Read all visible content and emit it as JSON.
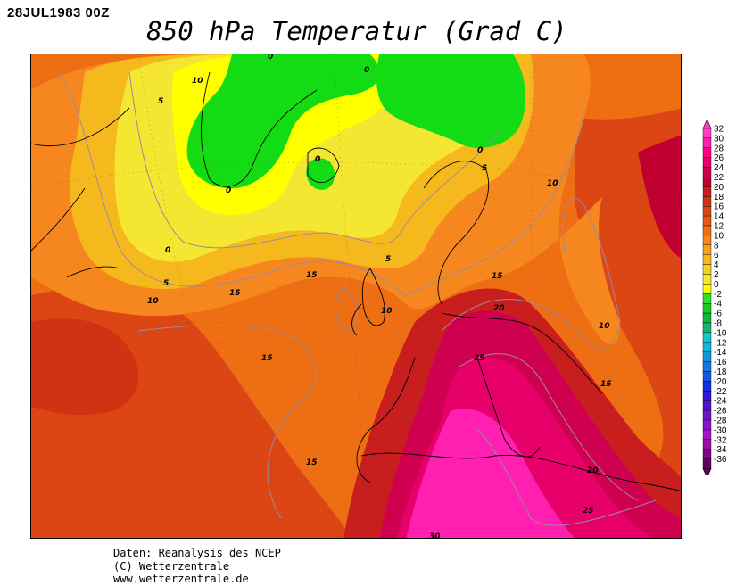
{
  "header": {
    "date": "28JUL1983 00Z",
    "title": "850 hPa Temperatur (Grad C)"
  },
  "legend": {
    "levels": [
      "32",
      "30",
      "28",
      "26",
      "24",
      "22",
      "20",
      "18",
      "16",
      "14",
      "12",
      "10",
      "8",
      "6",
      "4",
      "2",
      "0",
      "-2",
      "-4",
      "-6",
      "-8",
      "-10",
      "-12",
      "-14",
      "-16",
      "-18",
      "-20",
      "-22",
      "-24",
      "-26",
      "-28",
      "-30",
      "-32",
      "-34",
      "-36"
    ],
    "colors": [
      "#ff3fbf",
      "#ff1fb0",
      "#ff0080",
      "#e8006a",
      "#d00050",
      "#c00030",
      "#c81e1e",
      "#d23214",
      "#dc4614",
      "#e65a14",
      "#ee6e14",
      "#f5871e",
      "#f5a01e",
      "#f5b91e",
      "#f5d21e",
      "#f5e632",
      "#ffff00",
      "#32dc32",
      "#1ec81e",
      "#14b43c",
      "#14b478",
      "#14c8c8",
      "#14b4dc",
      "#1496dc",
      "#1478dc",
      "#145adc",
      "#1432dc",
      "#3214dc",
      "#5014c8",
      "#6e14c8",
      "#8c14c8",
      "#aa14c8",
      "#9614a0",
      "#780a80",
      "#640060"
    ]
  },
  "isotherm_labels": [
    {
      "value": "10"
    },
    {
      "value": "5"
    },
    {
      "value": "0"
    },
    {
      "value": "0"
    },
    {
      "value": "0"
    },
    {
      "value": "0"
    },
    {
      "value": "0"
    },
    {
      "value": "5"
    },
    {
      "value": "10"
    },
    {
      "value": "0"
    },
    {
      "value": "5"
    },
    {
      "value": "10"
    },
    {
      "value": "15"
    },
    {
      "value": "15"
    },
    {
      "value": "5"
    },
    {
      "value": "15"
    },
    {
      "value": "10"
    },
    {
      "value": "20"
    },
    {
      "value": "15"
    },
    {
      "value": "10"
    },
    {
      "value": "25"
    },
    {
      "value": "15"
    },
    {
      "value": "15"
    },
    {
      "value": "20"
    },
    {
      "value": "25"
    },
    {
      "value": "30"
    }
  ],
  "footer": {
    "line1": "Daten: Reanalysis des NCEP",
    "line2": "(C) Wetterzentrale",
    "line3": "www.wetterzentrale.de"
  }
}
